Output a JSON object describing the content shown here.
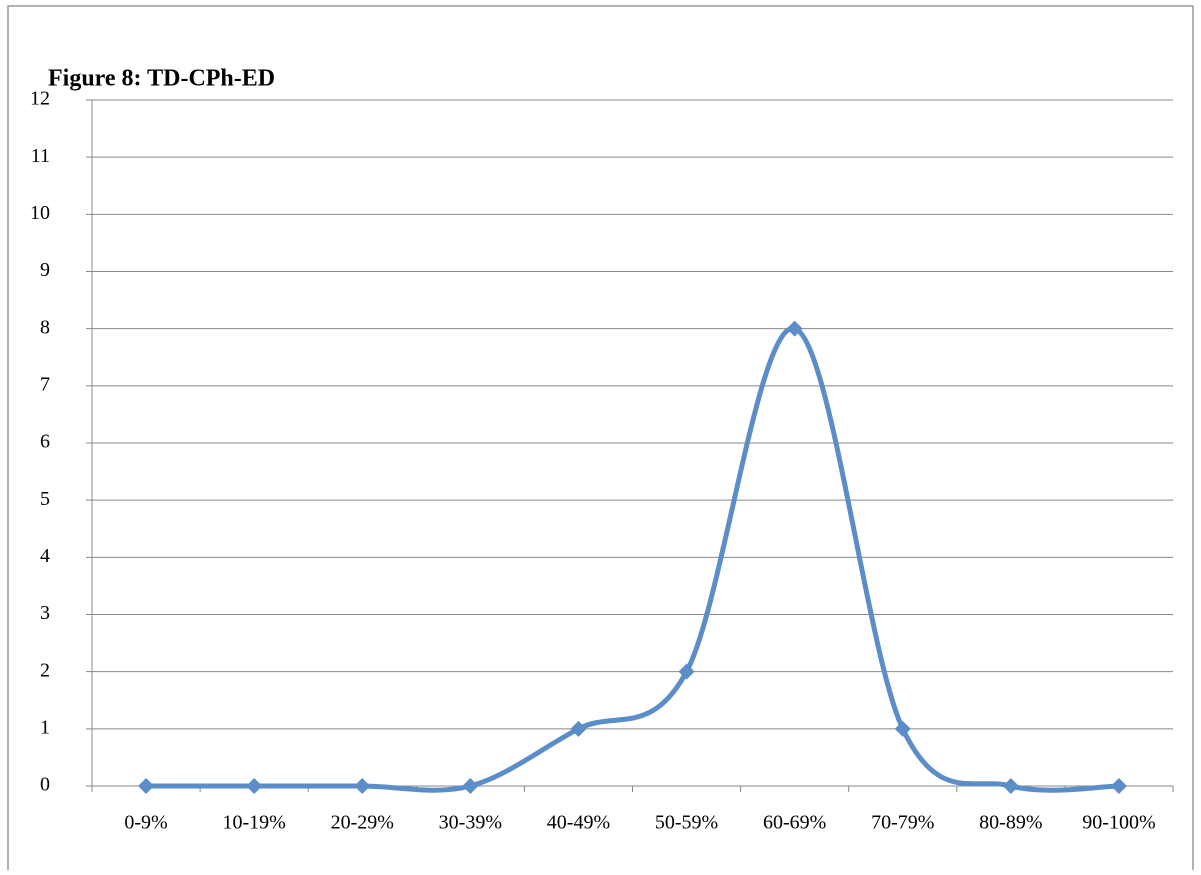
{
  "chart_data": {
    "type": "line",
    "title": "Figure 8: TD-CPh-ED",
    "categories": [
      "0-9%",
      "10-19%",
      "20-29%",
      "30-39%",
      "40-49%",
      "50-59%",
      "60-69%",
      "70-79%",
      "80-89%",
      "90-100%"
    ],
    "series": [
      {
        "color": "#5b8ec8",
        "values": [
          0,
          0,
          0,
          0,
          1,
          2,
          8,
          1,
          0,
          0
        ]
      }
    ],
    "ylim": [
      0,
      12
    ],
    "yticks": [
      0,
      1,
      2,
      3,
      4,
      5,
      6,
      7,
      8,
      9,
      10,
      11,
      12
    ],
    "grid": true,
    "smooth": true
  }
}
